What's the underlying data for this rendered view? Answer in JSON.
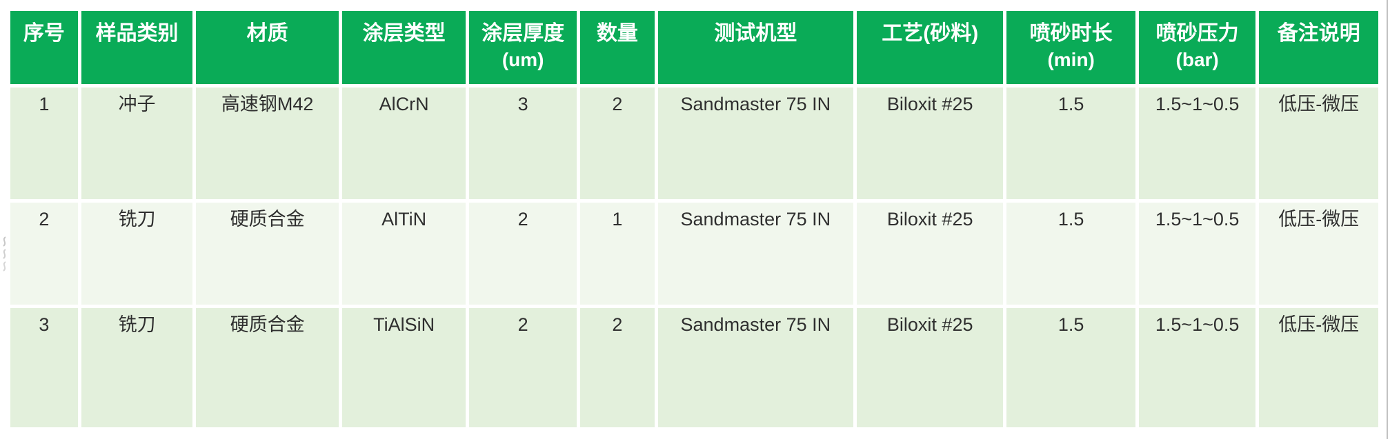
{
  "table": {
    "columns": [
      {
        "label": "序号",
        "width": 5.17
      },
      {
        "label": "样品类别",
        "width": 8.38
      },
      {
        "label": "材质",
        "width": 10.64
      },
      {
        "label": "涂层类型",
        "width": 9.28
      },
      {
        "label": "涂层厚度",
        "sub": "(um)",
        "width": 8.08
      },
      {
        "label": "数量",
        "width": 5.67
      },
      {
        "label": "测试机型",
        "width": 14.5
      },
      {
        "label": "工艺(砂料)",
        "width": 10.94
      },
      {
        "label": "喷砂时长",
        "sub": "(min)",
        "width": 9.63
      },
      {
        "label": "喷砂压力",
        "sub": "(bar)",
        "width": 8.78
      },
      {
        "label": "备注说明",
        "width": 8.93
      }
    ],
    "rows": [
      [
        "1",
        "冲子",
        "高速钢M42",
        "AlCrN",
        "3",
        "2",
        "Sandmaster 75 IN",
        "Biloxit #25",
        "1.5",
        "1.5~1~0.5",
        "低压-微压"
      ],
      [
        "2",
        "铣刀",
        "硬质合金",
        "AlTiN",
        "2",
        "1",
        "Sandmaster 75 IN",
        "Biloxit #25",
        "1.5",
        "1.5~1~0.5",
        "低压-微压"
      ],
      [
        "3",
        "铣刀",
        "硬质合金",
        "TiAlSiN",
        "2",
        "2",
        "Sandmaster 75 IN",
        "Biloxit #25",
        "1.5",
        "1.5~1~0.5",
        "低压-微压"
      ]
    ]
  },
  "colors": {
    "header_bg": "#0aab57",
    "header_text": "#ffffff",
    "row_odd": "#e3f0dc",
    "row_even": "#f1f7ed",
    "cell_text": "#2f2f2f",
    "screen_border": "#c2c2c2"
  }
}
